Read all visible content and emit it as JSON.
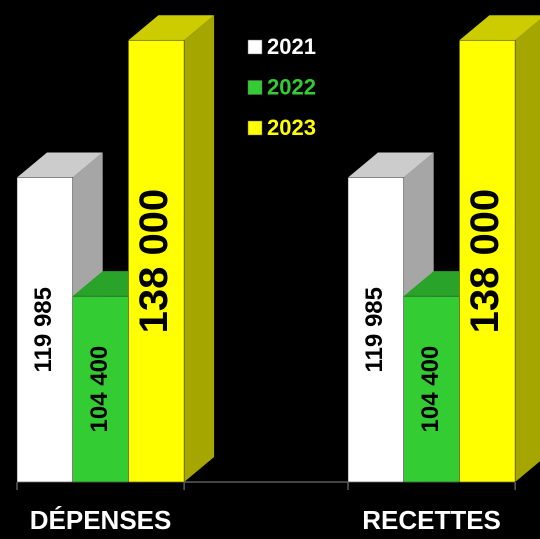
{
  "chart_data": {
    "type": "bar",
    "categories": [
      "DÉPENSES",
      "RECETTES"
    ],
    "series": [
      {
        "name": "2021",
        "color": "#ffffff",
        "values": [
          119985,
          119985
        ],
        "value_labels": [
          "119 985",
          "119 985"
        ]
      },
      {
        "name": "2022",
        "color": "#33cc33",
        "values": [
          104400,
          104400
        ],
        "value_labels": [
          "104 400",
          "104 400"
        ]
      },
      {
        "name": "2023",
        "color": "#ffff00",
        "values": [
          138000,
          138000
        ],
        "value_labels": [
          "138 000",
          "138 000"
        ]
      }
    ],
    "ylim": [
      80000,
      140000
    ],
    "legend": "top"
  }
}
